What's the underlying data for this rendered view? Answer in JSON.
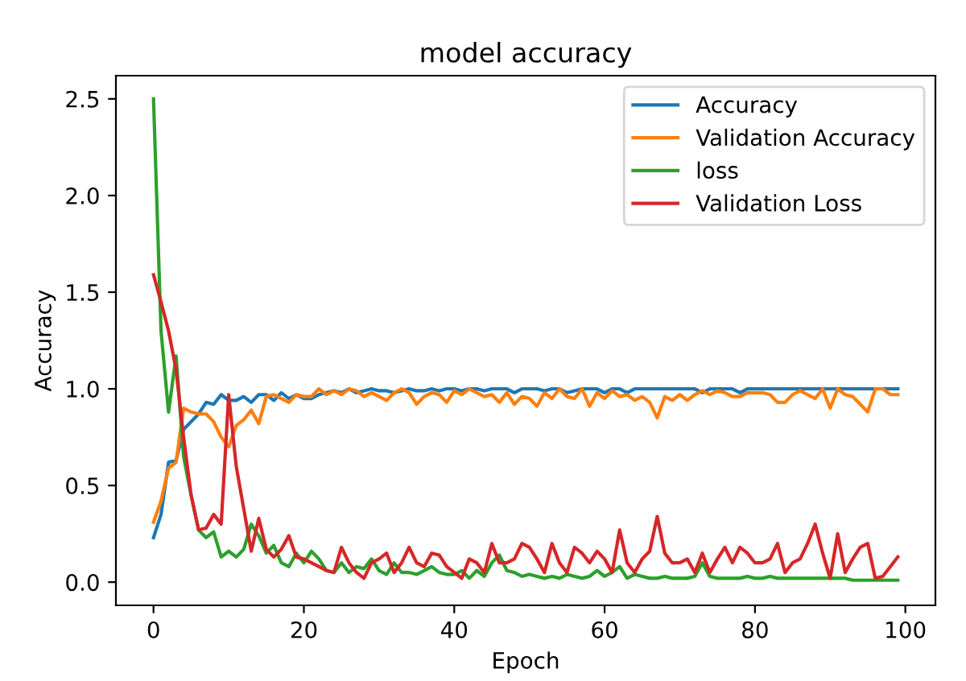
{
  "chart_data": {
    "type": "line",
    "title": "model accuracy",
    "xlabel": "Epoch",
    "ylabel": "Accuracy",
    "legend": "top right",
    "grid": false,
    "x": [
      0,
      1,
      2,
      3,
      4,
      5,
      6,
      7,
      8,
      9,
      10,
      11,
      12,
      13,
      14,
      15,
      16,
      17,
      18,
      19,
      20,
      21,
      22,
      23,
      24,
      25,
      26,
      27,
      28,
      29,
      30,
      31,
      32,
      33,
      34,
      35,
      36,
      37,
      38,
      39,
      40,
      41,
      42,
      43,
      44,
      45,
      46,
      47,
      48,
      49,
      50,
      51,
      52,
      53,
      54,
      55,
      56,
      57,
      58,
      59,
      60,
      61,
      62,
      63,
      64,
      65,
      66,
      67,
      68,
      69,
      70,
      71,
      72,
      73,
      74,
      75,
      76,
      77,
      78,
      79,
      80,
      81,
      82,
      83,
      84,
      85,
      86,
      87,
      88,
      89,
      90,
      91,
      92,
      93,
      94,
      95,
      96,
      97,
      98,
      99
    ],
    "xlim": [
      -5,
      104
    ],
    "xticks": [
      0,
      20,
      40,
      60,
      80,
      100
    ],
    "ylim": [
      -0.12,
      2.62
    ],
    "yticks": [
      {
        "value": 0,
        "label": "0.0"
      },
      {
        "value": 0.5,
        "label": "0.5"
      },
      {
        "value": 1,
        "label": "1.0"
      },
      {
        "value": 1.5,
        "label": "1.5"
      },
      {
        "value": 2,
        "label": "2.0"
      },
      {
        "value": 2.5,
        "label": "2.5"
      }
    ],
    "series": [
      {
        "name": "Accuracy",
        "color": "#1f77b4",
        "values": [
          0.23,
          0.35,
          0.62,
          0.63,
          0.79,
          0.83,
          0.87,
          0.93,
          0.92,
          0.97,
          0.94,
          0.94,
          0.96,
          0.93,
          0.97,
          0.97,
          0.94,
          0.98,
          0.95,
          0.97,
          0.95,
          0.95,
          0.97,
          0.98,
          0.99,
          0.98,
          1.0,
          0.98,
          0.99,
          1.0,
          0.99,
          0.99,
          0.98,
          0.99,
          1.0,
          0.99,
          0.99,
          1.0,
          0.99,
          1.0,
          1.0,
          0.99,
          1.0,
          1.0,
          0.99,
          1.0,
          1.0,
          1.0,
          0.98,
          1.0,
          1.0,
          1.0,
          0.99,
          1.0,
          1.0,
          0.98,
          0.99,
          1.0,
          1.0,
          1.0,
          0.98,
          1.0,
          1.0,
          0.98,
          1.0,
          1.0,
          1.0,
          1.0,
          1.0,
          1.0,
          1.0,
          1.0,
          1.0,
          0.98,
          1.0,
          1.0,
          1.0,
          1.0,
          0.98,
          1.0,
          1.0,
          1.0,
          1.0,
          1.0,
          1.0,
          1.0,
          1.0,
          1.0,
          1.0,
          1.0,
          1.0,
          1.0,
          1.0,
          1.0,
          1.0,
          1.0,
          1.0,
          1.0,
          1.0,
          1.0
        ]
      },
      {
        "name": "Validation Accuracy",
        "color": "#ff7f0e",
        "values": [
          0.31,
          0.42,
          0.59,
          0.62,
          0.9,
          0.88,
          0.87,
          0.87,
          0.83,
          0.75,
          0.7,
          0.81,
          0.84,
          0.89,
          0.82,
          0.96,
          0.97,
          0.95,
          0.93,
          0.97,
          0.96,
          0.96,
          1.0,
          0.97,
          0.99,
          0.97,
          1.0,
          0.99,
          0.96,
          0.98,
          0.96,
          0.94,
          0.98,
          1.0,
          0.98,
          0.92,
          0.96,
          0.98,
          0.97,
          0.93,
          0.99,
          0.97,
          1.0,
          0.98,
          0.96,
          0.97,
          0.93,
          0.98,
          0.92,
          0.96,
          0.95,
          0.91,
          0.98,
          0.95,
          1.0,
          0.96,
          0.95,
          1.0,
          0.91,
          0.98,
          0.95,
          0.99,
          0.96,
          0.97,
          0.94,
          0.96,
          0.93,
          0.85,
          0.96,
          0.94,
          0.97,
          0.94,
          0.97,
          0.99,
          0.97,
          0.99,
          0.98,
          0.96,
          0.96,
          0.98,
          0.98,
          0.98,
          0.97,
          0.93,
          0.93,
          0.97,
          0.99,
          0.97,
          0.95,
          1.0,
          0.9,
          1.0,
          0.97,
          0.96,
          0.92,
          0.88,
          1.0,
          1.0,
          0.97,
          0.97
        ]
      },
      {
        "name": "loss",
        "color": "#2ca02c",
        "values": [
          2.5,
          1.3,
          0.88,
          1.17,
          0.65,
          0.45,
          0.27,
          0.23,
          0.26,
          0.13,
          0.16,
          0.13,
          0.17,
          0.3,
          0.24,
          0.15,
          0.19,
          0.1,
          0.08,
          0.15,
          0.1,
          0.16,
          0.12,
          0.06,
          0.05,
          0.1,
          0.05,
          0.08,
          0.07,
          0.12,
          0.06,
          0.04,
          0.1,
          0.05,
          0.05,
          0.04,
          0.06,
          0.08,
          0.05,
          0.04,
          0.04,
          0.06,
          0.02,
          0.06,
          0.03,
          0.1,
          0.14,
          0.06,
          0.05,
          0.03,
          0.04,
          0.03,
          0.02,
          0.03,
          0.02,
          0.04,
          0.03,
          0.02,
          0.03,
          0.06,
          0.03,
          0.05,
          0.08,
          0.02,
          0.04,
          0.03,
          0.02,
          0.02,
          0.03,
          0.02,
          0.02,
          0.02,
          0.03,
          0.1,
          0.03,
          0.02,
          0.02,
          0.02,
          0.02,
          0.03,
          0.02,
          0.02,
          0.03,
          0.02,
          0.02,
          0.02,
          0.02,
          0.02,
          0.02,
          0.02,
          0.02,
          0.02,
          0.02,
          0.01,
          0.01,
          0.01,
          0.01,
          0.01,
          0.01,
          0.01
        ]
      },
      {
        "name": "Validation Loss",
        "color": "#d62728",
        "values": [
          1.59,
          1.45,
          1.3,
          1.1,
          0.75,
          0.45,
          0.27,
          0.28,
          0.35,
          0.3,
          0.97,
          0.6,
          0.38,
          0.16,
          0.33,
          0.17,
          0.13,
          0.17,
          0.24,
          0.13,
          0.12,
          0.1,
          0.08,
          0.06,
          0.05,
          0.18,
          0.1,
          0.05,
          0.02,
          0.1,
          0.12,
          0.15,
          0.05,
          0.1,
          0.18,
          0.1,
          0.08,
          0.15,
          0.14,
          0.08,
          0.05,
          0.02,
          0.12,
          0.1,
          0.05,
          0.2,
          0.1,
          0.1,
          0.12,
          0.2,
          0.18,
          0.12,
          0.05,
          0.2,
          0.1,
          0.05,
          0.18,
          0.15,
          0.1,
          0.16,
          0.12,
          0.05,
          0.27,
          0.1,
          0.05,
          0.12,
          0.16,
          0.34,
          0.15,
          0.1,
          0.1,
          0.12,
          0.05,
          0.15,
          0.05,
          0.12,
          0.18,
          0.1,
          0.18,
          0.15,
          0.1,
          0.1,
          0.12,
          0.2,
          0.05,
          0.1,
          0.12,
          0.2,
          0.3,
          0.15,
          0.02,
          0.25,
          0.05,
          0.12,
          0.18,
          0.2,
          0.02,
          0.03,
          0.08,
          0.13
        ]
      }
    ]
  }
}
